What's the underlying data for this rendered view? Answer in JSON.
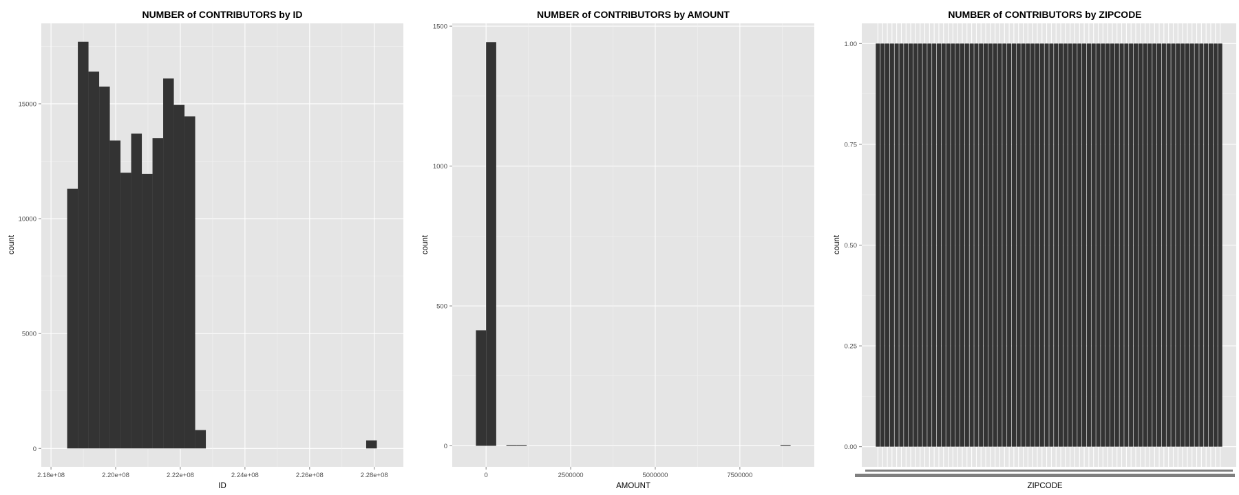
{
  "chart_data": [
    {
      "type": "bar",
      "subtype": "histogram",
      "title": "NUMBER of CONTRIBUTORS by ID",
      "xlabel": "ID",
      "ylabel": "count",
      "xlim": [
        217700000,
        228900000
      ],
      "ylim": [
        -800,
        18500
      ],
      "xticks": [
        218000000,
        220000000,
        222000000,
        224000000,
        226000000,
        228000000
      ],
      "xtick_labels": [
        "2.18e+08",
        "2.20e+08",
        "2.22e+08",
        "2.24e+08",
        "2.26e+08",
        "2.28e+08"
      ],
      "yticks": [
        0,
        5000,
        10000,
        15000
      ],
      "ytick_labels": [
        "0",
        "5000",
        "10000",
        "15000"
      ],
      "binwidth": 330000,
      "bins": [
        {
          "x0": 218500000,
          "x1": 218830000,
          "value": 11300
        },
        {
          "x0": 218830000,
          "x1": 219160000,
          "value": 17700
        },
        {
          "x0": 219160000,
          "x1": 219490000,
          "value": 16400
        },
        {
          "x0": 219490000,
          "x1": 219820000,
          "value": 15750
        },
        {
          "x0": 219820000,
          "x1": 220150000,
          "value": 13400
        },
        {
          "x0": 220150000,
          "x1": 220480000,
          "value": 12000
        },
        {
          "x0": 220480000,
          "x1": 220810000,
          "value": 13700
        },
        {
          "x0": 220810000,
          "x1": 221140000,
          "value": 11950
        },
        {
          "x0": 221140000,
          "x1": 221470000,
          "value": 13500
        },
        {
          "x0": 221470000,
          "x1": 221800000,
          "value": 16100
        },
        {
          "x0": 221800000,
          "x1": 222130000,
          "value": 14950
        },
        {
          "x0": 222130000,
          "x1": 222460000,
          "value": 14450
        },
        {
          "x0": 222460000,
          "x1": 222790000,
          "value": 800
        },
        {
          "x0": 227750000,
          "x1": 228080000,
          "value": 350
        }
      ],
      "grid": true
    },
    {
      "type": "bar",
      "subtype": "histogram",
      "title": "NUMBER of CONTRIBUTORS by AMOUNT",
      "xlabel": "AMOUNT",
      "ylabel": "count",
      "xlim": [
        -1000000,
        9700000
      ],
      "ylim": [
        -75,
        1510
      ],
      "xticks": [
        0,
        2500000,
        5000000,
        7500000
      ],
      "xtick_labels": [
        "0",
        "2500000",
        "5000000",
        "7500000"
      ],
      "yticks": [
        0,
        500,
        1000,
        1500
      ],
      "ytick_labels": [
        "0",
        "500",
        "1000",
        "1500"
      ],
      "binwidth": 300000,
      "bins": [
        {
          "x0": -300000,
          "x1": 0,
          "value": 413
        },
        {
          "x0": 0,
          "x1": 300000,
          "value": 1443
        },
        {
          "x0": 600000,
          "x1": 900000,
          "value": 2
        },
        {
          "x0": 900000,
          "x1": 1200000,
          "value": 2
        },
        {
          "x0": 8700000,
          "x1": 9000000,
          "value": 2
        }
      ],
      "grid": true
    },
    {
      "type": "bar",
      "title": "NUMBER of CONTRIBUTORS by ZIPCODE",
      "xlabel": "ZIPCODE",
      "ylabel": "count",
      "ylim": [
        -0.05,
        1.05
      ],
      "yticks": [
        0,
        0.25,
        0.5,
        0.75,
        1.0
      ],
      "ytick_labels": [
        "0.00",
        "0.25",
        "0.50",
        "0.75",
        "1.00"
      ],
      "category_count": 74,
      "bar_value": 1.0,
      "grid": true
    }
  ]
}
